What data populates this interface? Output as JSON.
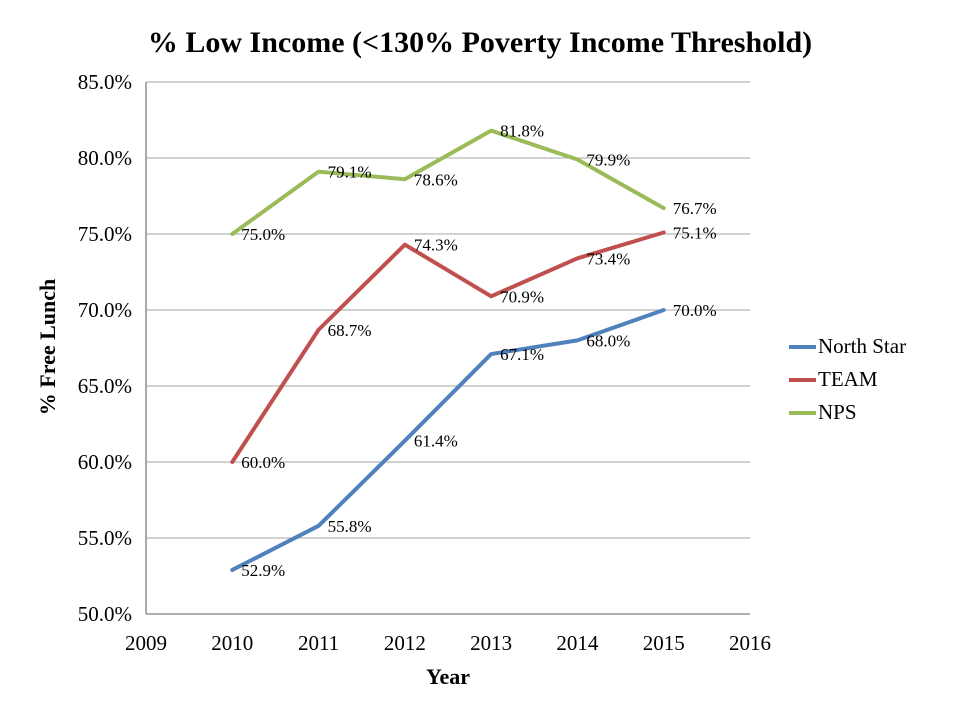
{
  "chart_data": {
    "type": "line",
    "title": "% Low Income (<130% Poverty Income Threshold)",
    "xlabel": "Year",
    "ylabel": "% Free Lunch",
    "x": [
      2010,
      2011,
      2012,
      2013,
      2014,
      2015
    ],
    "series": [
      {
        "name": "North Star",
        "color": "#4F81BD",
        "values": [
          52.9,
          55.8,
          61.4,
          67.1,
          68.0,
          70.0
        ],
        "point_labels": [
          "52.9%",
          "55.8%",
          "61.4%",
          "67.1%",
          "68.0%",
          "70.0%"
        ]
      },
      {
        "name": "TEAM",
        "color": "#C0504D",
        "values": [
          60.0,
          68.7,
          74.3,
          70.9,
          73.4,
          75.1
        ],
        "point_labels": [
          "60.0%",
          "68.7%",
          "74.3%",
          "70.9%",
          "73.4%",
          "75.1%"
        ]
      },
      {
        "name": "NPS",
        "color": "#9BBB59",
        "values": [
          75.0,
          79.1,
          78.6,
          81.8,
          79.9,
          76.7
        ],
        "point_labels": [
          "75.0%",
          "79.1%",
          "78.6%",
          "81.8%",
          "79.9%",
          "76.7%"
        ]
      }
    ],
    "xlim": [
      2009,
      2016
    ],
    "ylim": [
      50,
      85
    ],
    "xticks": [
      "2009",
      "2010",
      "2011",
      "2012",
      "2013",
      "2014",
      "2015",
      "2016"
    ],
    "xtick_values": [
      2009,
      2010,
      2011,
      2012,
      2013,
      2014,
      2015,
      2016
    ],
    "ytick_labels": [
      "50.0%",
      "55.0%",
      "60.0%",
      "65.0%",
      "70.0%",
      "75.0%",
      "80.0%",
      "85.0%"
    ],
    "ytick_values": [
      50,
      55,
      60,
      65,
      70,
      75,
      80,
      85
    ],
    "grid": "horizontal",
    "legend_position": "right",
    "colors": {
      "gridline": "#A6A6A6",
      "axis_line": "#808080",
      "text": "#000000",
      "background": "#FFFFFF"
    }
  }
}
